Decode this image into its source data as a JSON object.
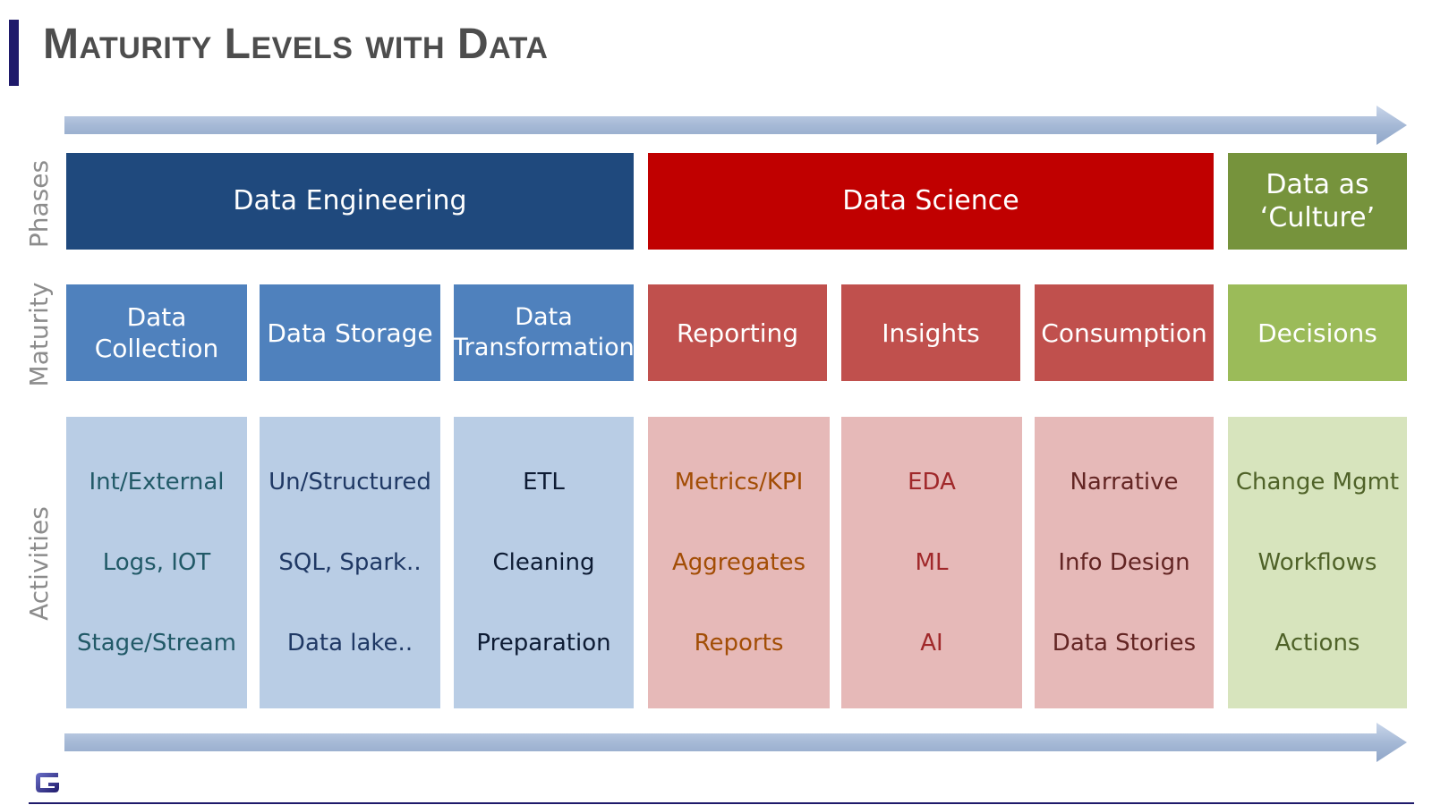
{
  "title": "Maturity Levels with Data",
  "row_labels": {
    "phases": "Phases",
    "maturity": "Maturity",
    "activities": "Activities"
  },
  "phases": [
    {
      "label": "Data Engineering",
      "color": "#1f497d"
    },
    {
      "label": "Data Science",
      "color": "#c00000"
    },
    {
      "label": "Data as ‘Culture’",
      "color": "#76933c"
    }
  ],
  "maturity": [
    {
      "label": "Data Collection",
      "color": "#4f81bd"
    },
    {
      "label": "Data Storage",
      "color": "#4f81bd"
    },
    {
      "label": "Data Transformation",
      "color": "#4f81bd"
    },
    {
      "label": "Reporting",
      "color": "#c0504d"
    },
    {
      "label": "Insights",
      "color": "#c0504d"
    },
    {
      "label": "Consumption",
      "color": "#c0504d"
    },
    {
      "label": "Decisions",
      "color": "#9bbb59"
    }
  ],
  "activities": [
    {
      "items": [
        "Int/External",
        "Logs, IOT",
        "Stage/Stream"
      ],
      "bg": "#b9cde5",
      "text_color": "#215967"
    },
    {
      "items": [
        "Un/Structured",
        "SQL, Spark..",
        "Data lake.."
      ],
      "bg": "#b9cde5",
      "text_color": "#1f3864"
    },
    {
      "items": [
        "ETL",
        "Cleaning",
        "Preparation"
      ],
      "bg": "#b9cde5",
      "text_color": "#0d1b33"
    },
    {
      "items": [
        "Metrics/KPI",
        "Aggregates",
        "Reports"
      ],
      "bg": "#e6b9b8",
      "text_color": "#a24d05"
    },
    {
      "items": [
        "EDA",
        "ML",
        "AI"
      ],
      "bg": "#e6b9b8",
      "text_color": "#a0282a"
    },
    {
      "items": [
        "Narrative",
        "Info Design",
        "Data Stories"
      ],
      "bg": "#e6b9b8",
      "text_color": "#632523"
    },
    {
      "items": [
        "Change Mgmt",
        "Workflows",
        "Actions"
      ],
      "bg": "#d7e4bd",
      "text_color": "#4f6228"
    }
  ],
  "colors": {
    "arrow": "#a6b9d6",
    "title_bar": "#1f1a6b",
    "title_text": "#4d4d4d",
    "row_label": "#8c8c8c"
  }
}
